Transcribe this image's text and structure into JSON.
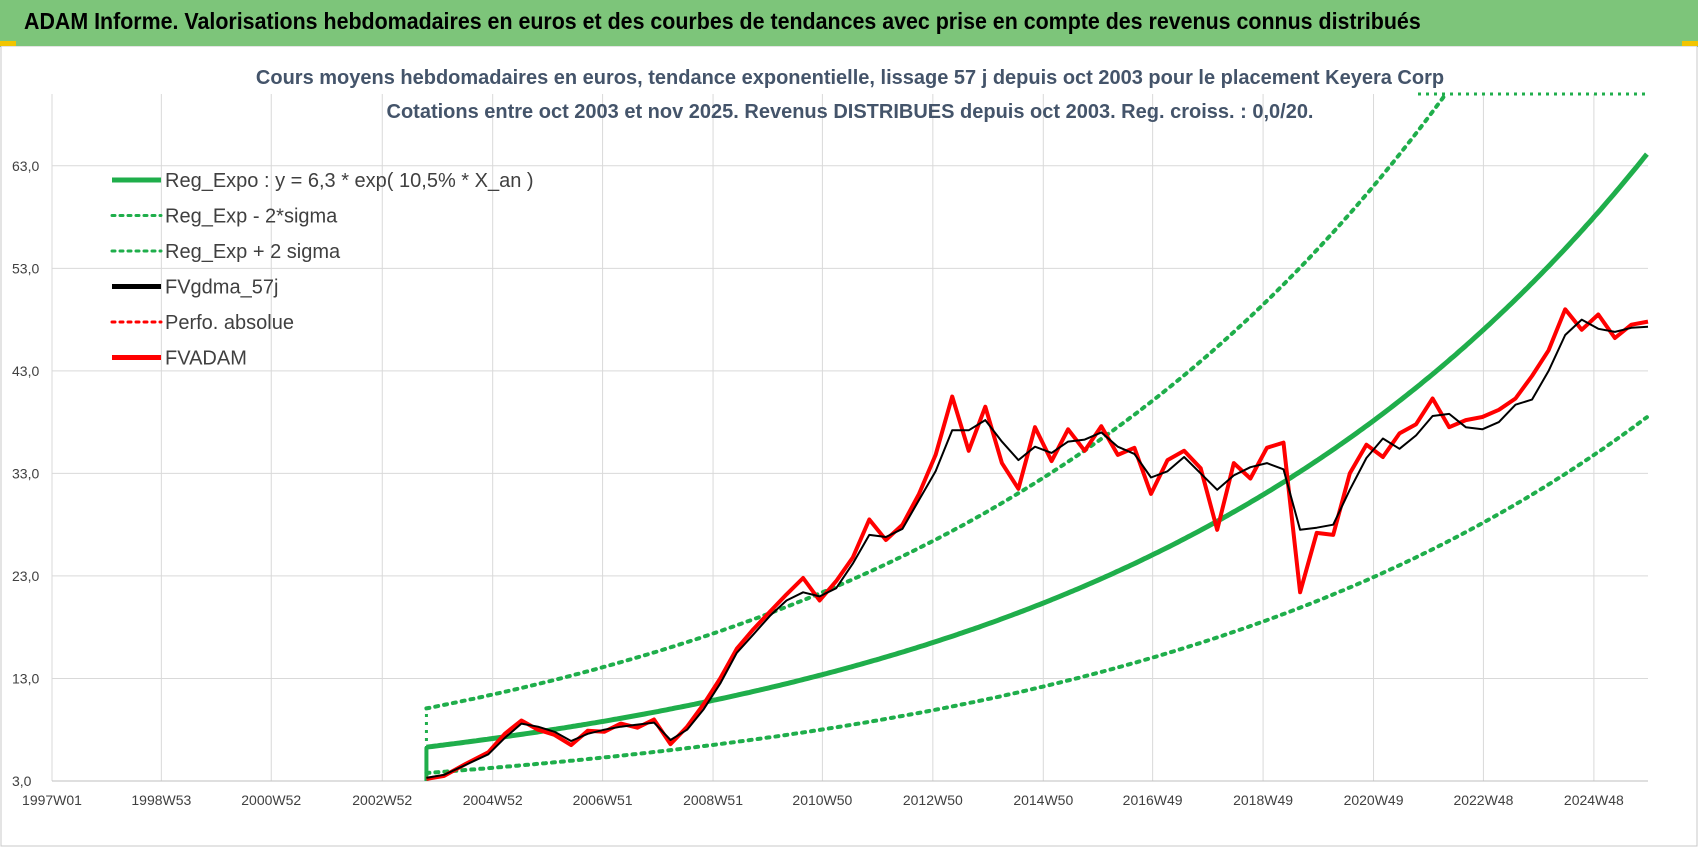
{
  "header": {
    "title": "ADAM Informe. Valorisations hebdomadaires en euros et des courbes de tendances avec prise en compte des revenus connus distribués"
  },
  "colors": {
    "header_bg": "#7dc57a",
    "trend_green": "#1fae4b",
    "series_black": "#000000",
    "series_red": "#ff0000",
    "title_color": "#44546a",
    "accent_yellow": "#f2c500"
  },
  "chart_data": {
    "type": "line",
    "title": "Cours moyens hebdomadaires en euros, tendance exponentielle, lissage 57 j depuis oct 2003 pour le placement Keyera Corp",
    "subtitle": "Cotations entre oct 2003 et nov 2025. Revenus DISTRIBUES depuis oct 2003. Reg. croiss. : 0,0/20.",
    "xlabel": "",
    "ylabel": "",
    "xlim": [
      1997.0,
      2025.9
    ],
    "ylim": [
      3.0,
      70.0
    ],
    "y_ticks": [
      3.0,
      13.0,
      23.0,
      33.0,
      43.0,
      53.0,
      63.0
    ],
    "y_tick_labels": [
      "3,0",
      "13,0",
      "23,0",
      "33,0",
      "43,0",
      "53,0",
      "63,0"
    ],
    "x_ticks": [
      1997.0,
      1998.98,
      2000.97,
      2002.98,
      2004.98,
      2006.97,
      2008.97,
      2010.95,
      2012.95,
      2014.95,
      2016.93,
      2018.93,
      2020.93,
      2022.92,
      2024.92
    ],
    "x_tick_labels": [
      "1997W01",
      "1998W53",
      "2000W52",
      "2002W52",
      "2004W52",
      "2006W51",
      "2008W51",
      "2010W50",
      "2012W50",
      "2014W50",
      "2016W49",
      "2018W49",
      "2020W49",
      "2022W48",
      "2024W48"
    ],
    "grid": true,
    "legend_position": "top-left",
    "trend": {
      "start": 2003.78,
      "end": 2025.9,
      "a": 6.3,
      "rate": 0.105,
      "lower_factor": 0.6,
      "upper_factor": 1.6,
      "start_value": 3.0,
      "upper_clip": 70.0
    },
    "series": [
      {
        "name": "Reg_Expo : y = 6,3 * exp( 10,5% *  X_an )",
        "style": "solid",
        "color": "#1fae4b"
      },
      {
        "name": "Reg_Exp - 2*sigma",
        "style": "dotted",
        "color": "#1fae4b"
      },
      {
        "name": "Reg_Exp + 2 sigma",
        "style": "dotted",
        "color": "#1fae4b"
      },
      {
        "name": "FVgdma_57j",
        "style": "solid",
        "color": "#000000",
        "x": [
          2003.78,
          2004.1,
          2004.5,
          2004.9,
          2005.2,
          2005.5,
          2005.8,
          2006.1,
          2006.4,
          2006.7,
          2007.0,
          2007.3,
          2007.6,
          2007.9,
          2008.2,
          2008.5,
          2008.8,
          2009.1,
          2009.4,
          2009.7,
          2010.0,
          2010.3,
          2010.6,
          2010.9,
          2011.2,
          2011.5,
          2011.8,
          2012.1,
          2012.4,
          2012.7,
          2013.0,
          2013.3,
          2013.6,
          2013.9,
          2014.2,
          2014.5,
          2014.8,
          2015.1,
          2015.4,
          2015.7,
          2016.0,
          2016.3,
          2016.6,
          2016.9,
          2017.2,
          2017.5,
          2017.8,
          2018.1,
          2018.4,
          2018.7,
          2019.0,
          2019.3,
          2019.6,
          2019.9,
          2020.2,
          2020.5,
          2020.8,
          2021.1,
          2021.4,
          2021.7,
          2022.0,
          2022.3,
          2022.6,
          2022.9,
          2023.2,
          2023.5,
          2023.8,
          2024.1,
          2024.4,
          2024.7,
          2025.0,
          2025.3,
          2025.6,
          2025.9
        ],
        "values": [
          3.3,
          3.6,
          4.6,
          5.6,
          7.2,
          8.6,
          8.3,
          7.8,
          6.9,
          7.6,
          8.0,
          8.3,
          8.5,
          8.7,
          7.0,
          8.0,
          10.0,
          12.5,
          15.5,
          17.3,
          19.1,
          20.6,
          21.4,
          21.0,
          21.8,
          24.2,
          27.0,
          26.8,
          27.6,
          30.4,
          33.2,
          37.2,
          37.2,
          38.2,
          36.1,
          34.3,
          35.6,
          35.0,
          36.1,
          36.3,
          37.0,
          35.6,
          34.9,
          32.6,
          33.2,
          34.6,
          33.0,
          31.4,
          32.8,
          33.6,
          34.0,
          33.4,
          27.5,
          27.7,
          28.0,
          31.4,
          34.5,
          36.4,
          35.4,
          36.7,
          38.6,
          38.8,
          37.5,
          37.3,
          38.0,
          39.7,
          40.2,
          43.0,
          46.5,
          48.0,
          47.1,
          46.8,
          47.2,
          47.3
        ]
      },
      {
        "name": "Perfo. absolue",
        "style": "dotted",
        "color": "#ff0000"
      },
      {
        "name": "FVADAM",
        "style": "solid",
        "color": "#ff0000",
        "x": [
          2003.78,
          2004.1,
          2004.5,
          2004.9,
          2005.2,
          2005.5,
          2005.8,
          2006.1,
          2006.4,
          2006.7,
          2007.0,
          2007.3,
          2007.6,
          2007.9,
          2008.2,
          2008.5,
          2008.8,
          2009.1,
          2009.4,
          2009.7,
          2010.0,
          2010.3,
          2010.6,
          2010.9,
          2011.2,
          2011.5,
          2011.8,
          2012.1,
          2012.4,
          2012.7,
          2013.0,
          2013.3,
          2013.6,
          2013.9,
          2014.2,
          2014.5,
          2014.8,
          2015.1,
          2015.4,
          2015.7,
          2016.0,
          2016.3,
          2016.6,
          2016.9,
          2017.2,
          2017.5,
          2017.8,
          2018.1,
          2018.4,
          2018.7,
          2019.0,
          2019.3,
          2019.6,
          2019.9,
          2020.2,
          2020.5,
          2020.8,
          2021.1,
          2021.4,
          2021.7,
          2022.0,
          2022.3,
          2022.6,
          2022.9,
          2023.2,
          2023.5,
          2023.8,
          2024.1,
          2024.4,
          2024.7,
          2025.0,
          2025.3,
          2025.6,
          2025.9
        ],
        "values": [
          3.2,
          3.5,
          4.7,
          5.8,
          7.6,
          8.9,
          8.0,
          7.5,
          6.5,
          7.9,
          7.8,
          8.6,
          8.2,
          9.0,
          6.6,
          8.3,
          10.5,
          13.0,
          15.9,
          17.8,
          19.5,
          21.2,
          22.8,
          20.6,
          22.5,
          24.8,
          28.5,
          26.5,
          28.0,
          31.0,
          34.8,
          40.5,
          35.2,
          39.5,
          34.0,
          31.5,
          37.5,
          34.2,
          37.3,
          35.2,
          37.6,
          34.8,
          35.5,
          31.0,
          34.3,
          35.2,
          33.5,
          27.5,
          34.0,
          32.5,
          35.5,
          36.0,
          21.4,
          27.2,
          27.0,
          33.0,
          35.8,
          34.6,
          36.9,
          37.8,
          40.3,
          37.5,
          38.2,
          38.5,
          39.2,
          40.3,
          42.5,
          45.0,
          49.0,
          47.0,
          48.5,
          46.2,
          47.5,
          47.8
        ]
      }
    ]
  }
}
